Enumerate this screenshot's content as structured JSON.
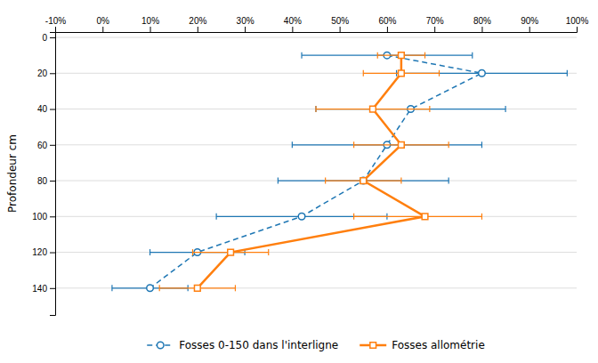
{
  "chart_data": {
    "type": "line",
    "ylabel": "Profondeur cm",
    "y": [
      10,
      20,
      40,
      60,
      80,
      100,
      120,
      140
    ],
    "series": [
      {
        "name": "Fosses 0-150 dans l'interligne",
        "line_style": "dashed",
        "marker": "circle",
        "values": [
          60,
          80,
          65,
          60,
          55,
          42,
          20,
          10
        ],
        "error_low": [
          18,
          18,
          20,
          20,
          18,
          18,
          10,
          8
        ],
        "error_high": [
          18,
          18,
          20,
          20,
          18,
          18,
          10,
          8
        ]
      },
      {
        "name": "Fosses allométrie",
        "line_style": "solid",
        "marker": "square",
        "values": [
          63,
          63,
          57,
          63,
          55,
          68,
          27,
          20
        ],
        "error_low": [
          5,
          8,
          12,
          10,
          8,
          15,
          8,
          8
        ],
        "error_high": [
          5,
          8,
          12,
          10,
          8,
          12,
          8,
          8
        ]
      }
    ],
    "xlim": [
      -10,
      100
    ],
    "ylim": [
      155,
      -3
    ],
    "xticks": [
      {
        "value": -10,
        "label": "-10%"
      },
      {
        "value": 0,
        "label": "0%"
      },
      {
        "value": 10,
        "label": "10%"
      },
      {
        "value": 20,
        "label": "20%"
      },
      {
        "value": 30,
        "label": "30%"
      },
      {
        "value": 40,
        "label": "40%"
      },
      {
        "value": 50,
        "label": "50%"
      },
      {
        "value": 60,
        "label": "60%"
      },
      {
        "value": 70,
        "label": "70%"
      },
      {
        "value": 80,
        "label": "80%"
      },
      {
        "value": 90,
        "label": "90%"
      },
      {
        "value": 100,
        "label": "100%"
      }
    ],
    "yticks": [
      0,
      20,
      40,
      60,
      80,
      100,
      120,
      140
    ],
    "grid": true,
    "legend": "bottom"
  }
}
